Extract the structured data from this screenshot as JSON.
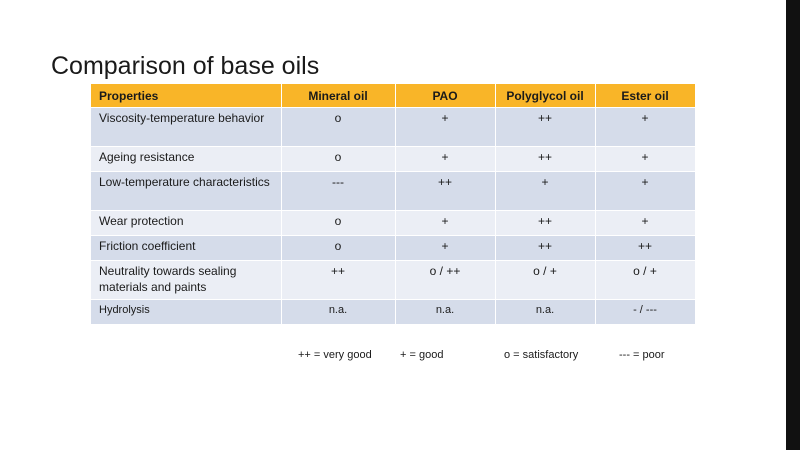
{
  "slide": {
    "title": "Comparison of base oils"
  },
  "table": {
    "headers": [
      "Properties",
      "Mineral  oil",
      "PAO",
      "Polyglycol  oil",
      "Ester oil"
    ],
    "rows": [
      [
        "Viscosity-temperature behavior",
        "o",
        "+",
        "++",
        "+"
      ],
      [
        "Ageing resistance",
        "o",
        "+",
        "++",
        "+"
      ],
      [
        "Low-temperature characteristics",
        "---",
        "++",
        "+",
        "+"
      ],
      [
        "Wear protection",
        "o",
        "+",
        "++",
        "+"
      ],
      [
        "Friction coefficient",
        "o",
        "+",
        "++",
        "++"
      ],
      [
        "Neutrality towards sealing materials and paints",
        "++",
        "o / ++",
        "o / +",
        "o / +"
      ],
      [
        "Hydrolysis",
        "n.a.",
        "n.a.",
        "n.a.",
        "- / ---"
      ]
    ]
  },
  "legend": {
    "items": [
      "++ = very good",
      "+ = good",
      "o = satisfactory",
      "--- = poor"
    ]
  },
  "colors": {
    "header_bg": "#f9b528",
    "row_dark": "#d5dcea",
    "row_light": "#ebeef5"
  }
}
